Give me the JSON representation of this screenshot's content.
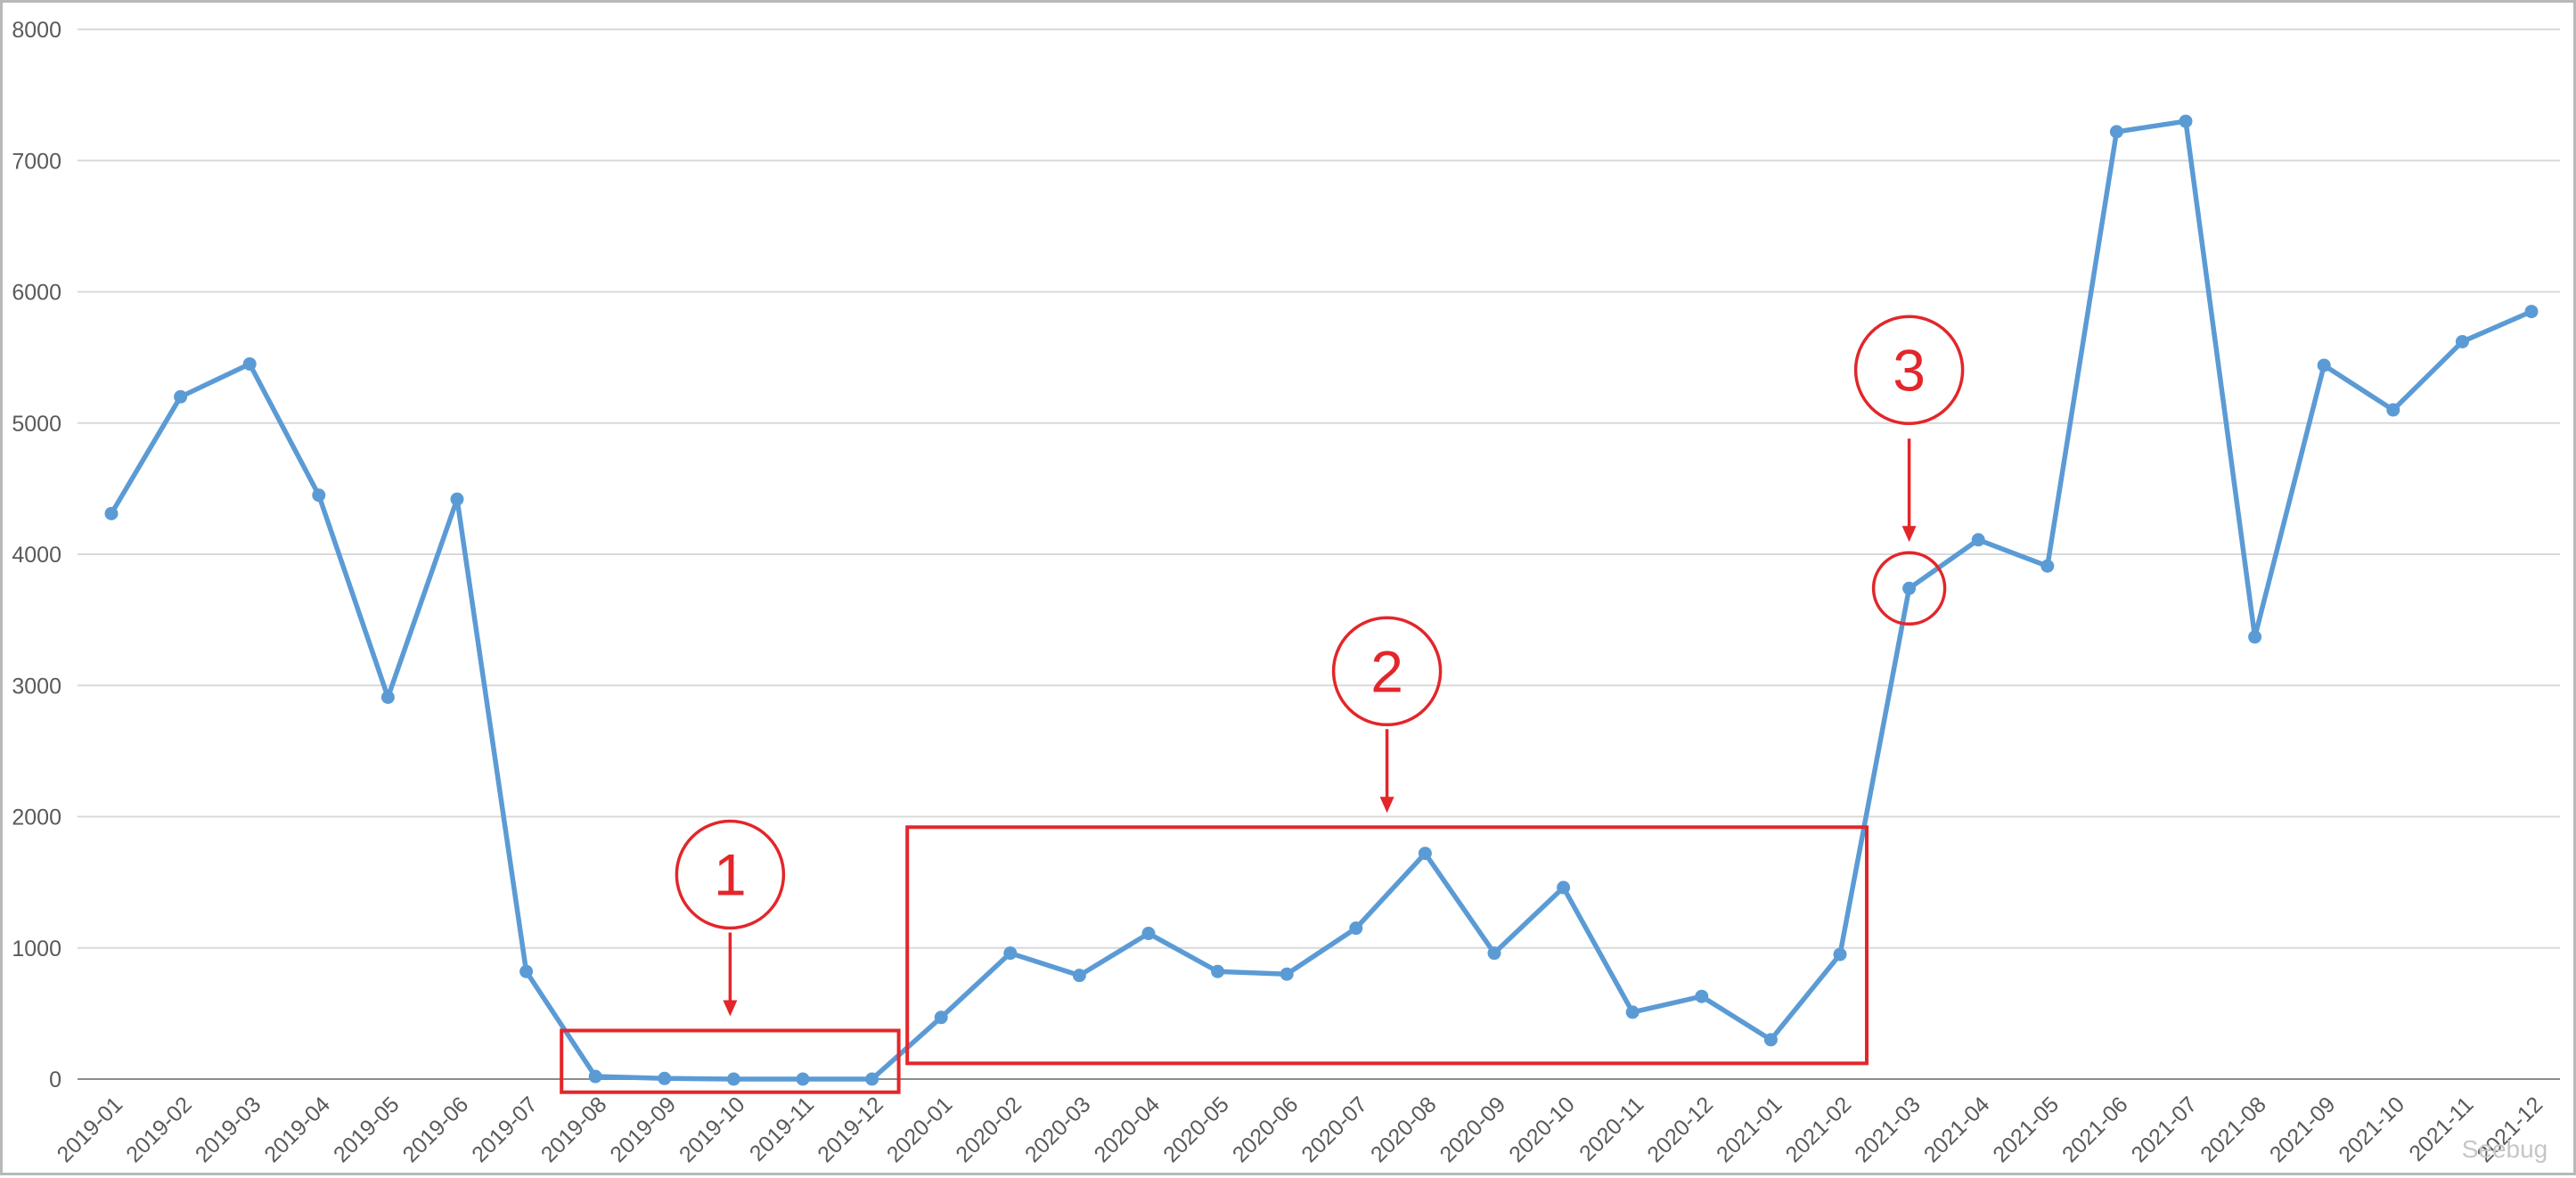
{
  "chart_data": {
    "type": "line",
    "title": "",
    "xlabel": "",
    "ylabel": "",
    "ylim": [
      0,
      8000
    ],
    "yticks": [
      0,
      1000,
      2000,
      3000,
      4000,
      5000,
      6000,
      7000,
      8000
    ],
    "grid": true,
    "legend": "none",
    "categories": [
      "2019-01",
      "2019-02",
      "2019-03",
      "2019-04",
      "2019-05",
      "2019-06",
      "2019-07",
      "2019-08",
      "2019-09",
      "2019-10",
      "2019-11",
      "2019-12",
      "2020-01",
      "2020-02",
      "2020-03",
      "2020-04",
      "2020-05",
      "2020-06",
      "2020-07",
      "2020-08",
      "2020-09",
      "2020-10",
      "2020-11",
      "2020-12",
      "2021-01",
      "2021-02",
      "2021-03",
      "2021-04",
      "2021-05",
      "2021-06",
      "2021-07",
      "2021-08",
      "2021-09",
      "2021-10",
      "2021-11",
      "2021-12"
    ],
    "series": [
      {
        "values": [
          4310,
          5200,
          5450,
          4450,
          2910,
          4420,
          820,
          20,
          5,
          0,
          0,
          0,
          470,
          960,
          790,
          1110,
          820,
          800,
          1150,
          1720,
          960,
          1460,
          510,
          630,
          300,
          950,
          3740,
          4110,
          3910,
          7220,
          7300,
          3370,
          5440,
          5100,
          5620,
          5850
        ],
        "color": "#5b9bd5"
      }
    ],
    "annotations": [
      {
        "label": "1",
        "type": "box",
        "from": "2019-08",
        "to": "2019-12",
        "ymin": -100,
        "ymax": 370
      },
      {
        "label": "2",
        "type": "box",
        "from": "2020-01",
        "to": "2021-02",
        "ymin": 120,
        "ymax": 1920
      },
      {
        "label": "3",
        "type": "circle",
        "at": "2021-03",
        "value": 3740
      }
    ],
    "annotation_color": "#e3262a"
  },
  "watermark": {
    "text": "Seebug"
  }
}
